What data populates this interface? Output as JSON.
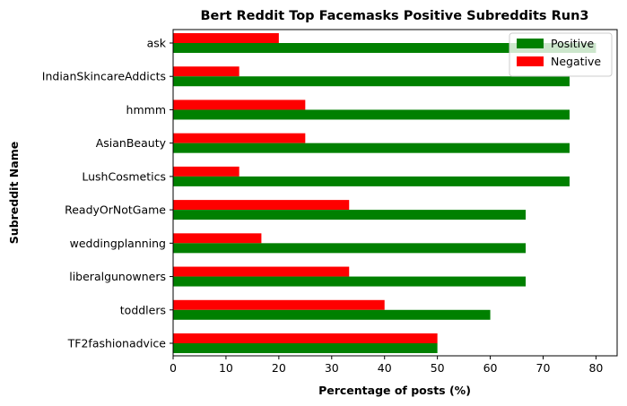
{
  "chart_data": {
    "type": "bar",
    "orientation": "horizontal",
    "title": "Bert Reddit Top Facemasks Positive Subreddits Run3",
    "xlabel": "Percentage of posts (%)",
    "ylabel": "Subreddit Name",
    "xlim": [
      0,
      84
    ],
    "xticks": [
      0,
      10,
      20,
      30,
      40,
      50,
      60,
      70,
      80
    ],
    "categories": [
      "ask",
      "IndianSkincareAddicts",
      "hmmm",
      "AsianBeauty",
      "LushCosmetics",
      "ReadyOrNotGame",
      "weddingplanning",
      "liberalgunowners",
      "toddlers",
      "TF2fashionadvice"
    ],
    "series": [
      {
        "name": "Positive",
        "color": "#008000",
        "values": [
          80,
          75,
          75,
          75,
          75,
          66.7,
          66.7,
          66.7,
          60,
          50
        ]
      },
      {
        "name": "Negative",
        "color": "#ff0000",
        "values": [
          20,
          12.5,
          25,
          25,
          12.5,
          33.3,
          16.7,
          33.3,
          40,
          50
        ]
      }
    ],
    "legend": {
      "placement": "top-right",
      "entries": [
        "Positive",
        "Negative"
      ]
    },
    "grid": false
  }
}
